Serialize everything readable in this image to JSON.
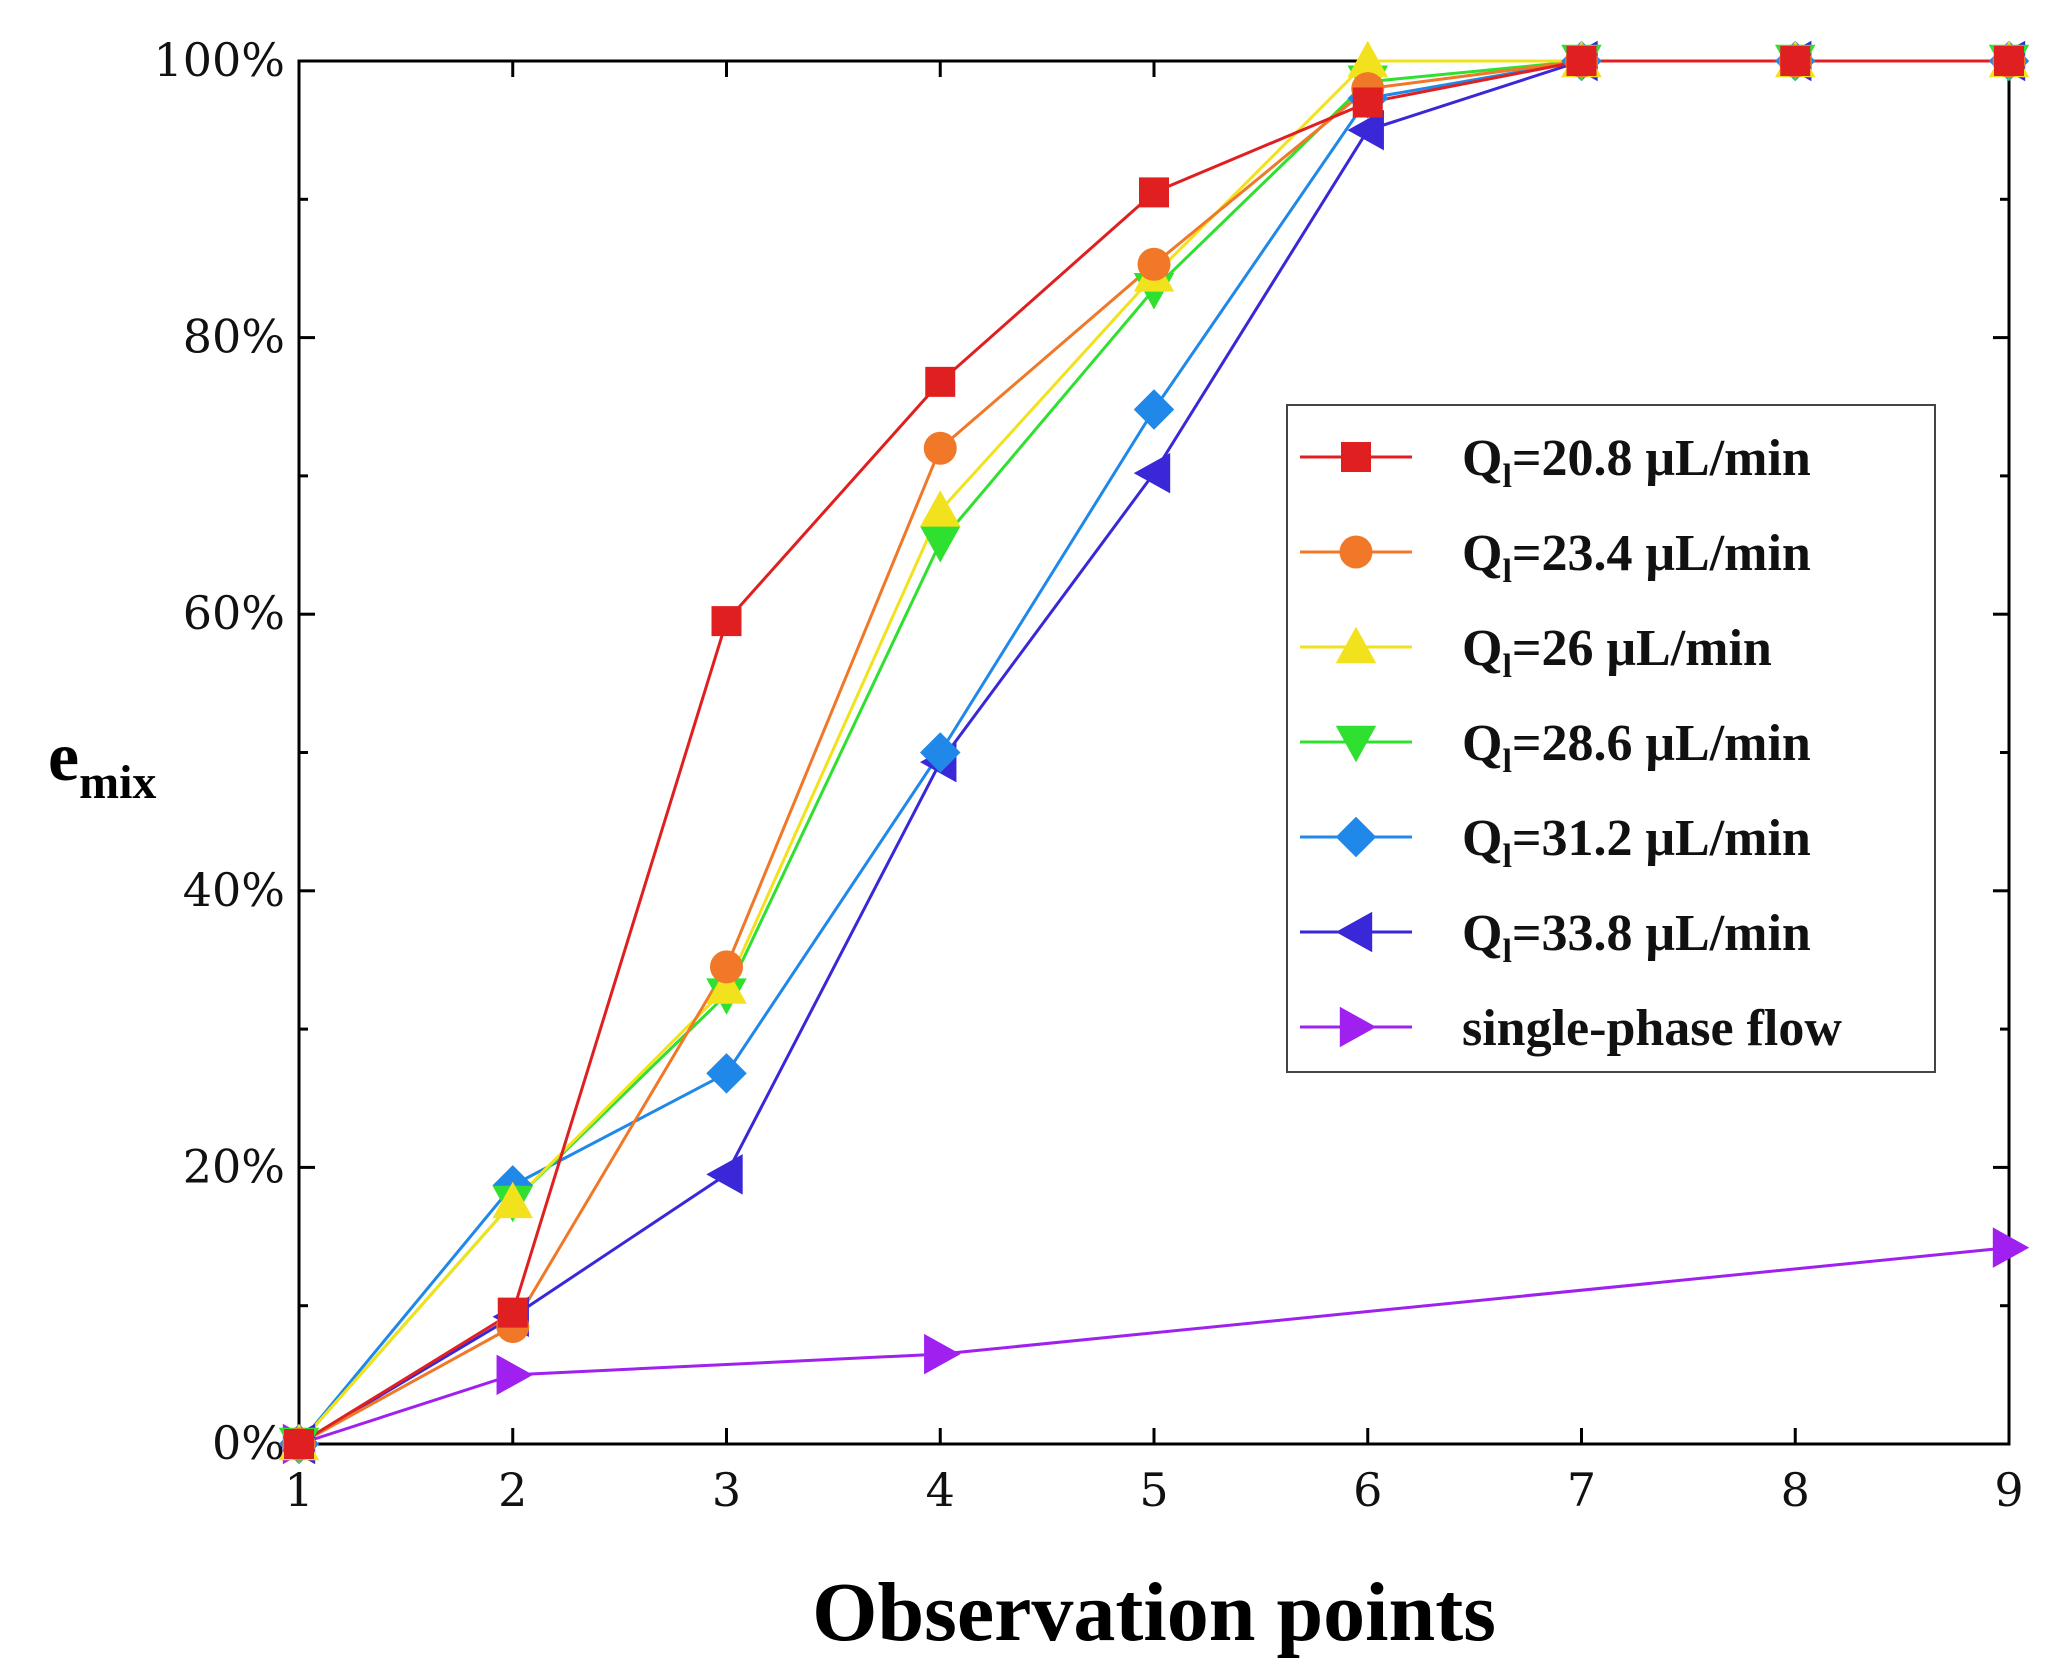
{
  "chart_data": {
    "type": "line",
    "title": "",
    "xlabel": "Observation points",
    "ylabel_main": "e",
    "ylabel_sub": "mix",
    "x": [
      1,
      2,
      3,
      4,
      5,
      6,
      7,
      8,
      9
    ],
    "xlim": [
      1,
      9
    ],
    "ylim": [
      0,
      100
    ],
    "ytick_values": [
      0,
      20,
      40,
      60,
      80,
      100
    ],
    "ytick_labels": [
      "0%",
      "20%",
      "40%",
      "60%",
      "80%",
      "100%"
    ],
    "xtick_labels": [
      "1",
      "2",
      "3",
      "4",
      "5",
      "6",
      "7",
      "8",
      "9"
    ],
    "grid": false,
    "legend_position": "center-right",
    "series": [
      {
        "name": "Q_l=20.8 μL/min",
        "legend_main": "Q",
        "legend_sub": "l",
        "legend_rest": "=20.8 μL/min",
        "color": "#e02020",
        "marker": "square",
        "x": [
          1,
          2,
          3,
          4,
          5,
          6,
          7,
          8,
          9
        ],
        "values": [
          0,
          9.5,
          59.5,
          76.8,
          90.5,
          97,
          100,
          100,
          100
        ]
      },
      {
        "name": "Q_l=23.4 μL/min",
        "legend_main": "Q",
        "legend_sub": "l",
        "legend_rest": "=23.4 μL/min",
        "color": "#f07828",
        "marker": "circle",
        "x": [
          1,
          2,
          3,
          4,
          5,
          6,
          7,
          8,
          9
        ],
        "values": [
          0,
          8.5,
          34.5,
          72,
          85.3,
          98,
          100,
          100,
          100
        ]
      },
      {
        "name": "Q_l=26 μL/min",
        "legend_main": "Q",
        "legend_sub": "l",
        "legend_rest": "=26 μL/min",
        "color": "#f2e21e",
        "marker": "triangle-up",
        "x": [
          1,
          2,
          3,
          4,
          5,
          6,
          7,
          8,
          9
        ],
        "values": [
          0,
          17.5,
          33,
          67.5,
          84.5,
          100,
          100,
          100,
          100
        ]
      },
      {
        "name": "Q_l=28.6 μL/min",
        "legend_main": "Q",
        "legend_sub": "l",
        "legend_rest": "=28.6 μL/min",
        "color": "#30e030",
        "marker": "triangle-down",
        "x": [
          1,
          2,
          3,
          4,
          5,
          6,
          7,
          8,
          9
        ],
        "values": [
          0,
          17.5,
          32.5,
          65.2,
          83.5,
          98.5,
          100,
          100,
          100
        ]
      },
      {
        "name": "Q_l=31.2 μL/min",
        "legend_main": "Q",
        "legend_sub": "l",
        "legend_rest": "=31.2 μL/min",
        "color": "#2088e8",
        "marker": "diamond",
        "x": [
          1,
          2,
          3,
          4,
          5,
          6,
          7,
          8,
          9
        ],
        "values": [
          0,
          18.7,
          26.8,
          50,
          74.8,
          97.3,
          100,
          100,
          100
        ]
      },
      {
        "name": "Q_l=33.8 μL/min",
        "legend_main": "Q",
        "legend_sub": "l",
        "legend_rest": "=33.8 μL/min",
        "color": "#3a28d8",
        "marker": "triangle-left",
        "x": [
          1,
          2,
          3,
          4,
          5,
          6,
          7,
          8,
          9
        ],
        "values": [
          0,
          9.2,
          19.5,
          49.3,
          70.2,
          95,
          100,
          100,
          100
        ]
      },
      {
        "name": "single-phase flow",
        "legend_main": "single-phase flow",
        "legend_sub": "",
        "legend_rest": "",
        "color": "#a020f0",
        "marker": "triangle-right",
        "x": [
          1,
          2,
          4,
          9
        ],
        "values": [
          0,
          5,
          6.5,
          14.2
        ]
      }
    ]
  }
}
